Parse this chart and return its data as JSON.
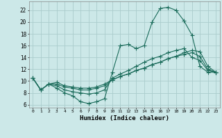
{
  "xlabel": "Humidex (Indice chaleur)",
  "background_color": "#cce8e8",
  "grid_color": "#aacccc",
  "line_color": "#1a6b5a",
  "xlim": [
    -0.5,
    23.5
  ],
  "ylim": [
    5.5,
    23.5
  ],
  "xticks": [
    0,
    1,
    2,
    3,
    4,
    5,
    6,
    7,
    8,
    9,
    10,
    11,
    12,
    13,
    14,
    15,
    16,
    17,
    18,
    19,
    20,
    21,
    22,
    23
  ],
  "yticks": [
    6,
    8,
    10,
    12,
    14,
    16,
    18,
    20,
    22
  ],
  "lines": [
    {
      "x": [
        0,
        1,
        2,
        3,
        4,
        5,
        6,
        7,
        8,
        9,
        10,
        11,
        12,
        13,
        14,
        15,
        16,
        17,
        18,
        19,
        20,
        21,
        22,
        23
      ],
      "y": [
        10.5,
        8.5,
        9.5,
        8.8,
        8.0,
        7.5,
        6.5,
        6.2,
        6.5,
        7.0,
        11.5,
        16.0,
        16.2,
        15.5,
        16.0,
        20.0,
        22.3,
        22.5,
        22.0,
        20.2,
        17.8,
        12.5,
        11.5,
        11.5
      ]
    },
    {
      "x": [
        0,
        1,
        2,
        3,
        4,
        5,
        6,
        7,
        8,
        9,
        10,
        11,
        12,
        13,
        14,
        15,
        16,
        17,
        18,
        19,
        20,
        21,
        22,
        23
      ],
      "y": [
        10.5,
        8.5,
        9.5,
        9.2,
        8.5,
        8.2,
        8.0,
        7.8,
        8.0,
        8.5,
        10.5,
        11.2,
        11.8,
        12.5,
        13.2,
        13.8,
        14.2,
        14.8,
        15.2,
        15.5,
        14.0,
        13.5,
        11.8,
        11.5
      ]
    },
    {
      "x": [
        0,
        1,
        2,
        3,
        4,
        5,
        6,
        7,
        8,
        9,
        10,
        11,
        12,
        13,
        14,
        15,
        16,
        17,
        18,
        19,
        20,
        21,
        22,
        23
      ],
      "y": [
        10.5,
        8.5,
        9.5,
        9.5,
        9.0,
        8.8,
        8.5,
        8.5,
        8.8,
        9.2,
        10.2,
        10.8,
        11.2,
        11.8,
        12.2,
        12.8,
        13.2,
        13.8,
        14.2,
        14.5,
        14.8,
        14.2,
        12.0,
        11.5
      ]
    },
    {
      "x": [
        0,
        1,
        2,
        3,
        4,
        5,
        6,
        7,
        8,
        9,
        10,
        11,
        12,
        13,
        14,
        15,
        16,
        17,
        18,
        19,
        20,
        21,
        22,
        23
      ],
      "y": [
        10.5,
        8.5,
        9.5,
        9.8,
        9.2,
        9.0,
        8.8,
        8.8,
        9.0,
        9.5,
        10.2,
        10.8,
        11.2,
        11.8,
        12.2,
        12.8,
        13.2,
        13.8,
        14.2,
        14.8,
        15.2,
        15.0,
        12.5,
        11.5
      ]
    }
  ],
  "marker": "+",
  "markersize": 4.0,
  "markeredgewidth": 0.8,
  "linewidth": 0.8
}
